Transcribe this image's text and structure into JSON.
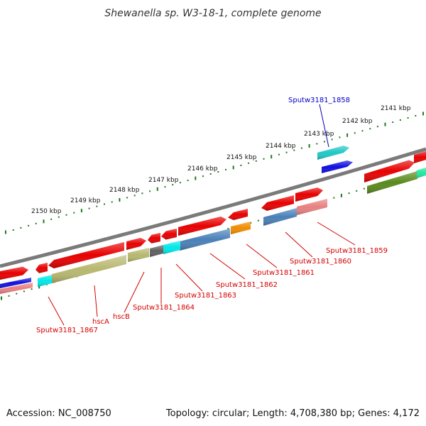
{
  "title": "Shewanella sp. W3-18-1, complete genome",
  "footer": {
    "accession": "Accession: NC_008750",
    "summary": "Topology: circular; Length: 4,708,380 bp; Genes: 4,172"
  },
  "scale": {
    "unit": "kbp",
    "ticks": [
      "2150 kbp",
      "2149 kbp",
      "2148 kbp",
      "2147 kbp",
      "2146 kbp",
      "2145 kbp",
      "2144 kbp",
      "2143 kbp",
      "2142 kbp",
      "2141 kbp"
    ]
  },
  "colors": {
    "backbone": "#7a7a7a",
    "scale_dots": "#1f7a1f",
    "label_red": "#d40000",
    "label_blue": "#0000c8",
    "red": "#e80000",
    "pink": "#e88080",
    "olive": "#b8b870",
    "darkolive": "#5a8a1e",
    "grey": "#606060",
    "cyan": "#00e8e8",
    "steel": "#4a80b8",
    "orange": "#f08c00",
    "blue": "#1010e0",
    "teal": "#20c8c8",
    "mint": "#20e8a0"
  },
  "gene_labels": [
    {
      "text": "Sputw3181_1858",
      "color": "blue"
    },
    {
      "text": "Sputw3181_1859",
      "color": "red"
    },
    {
      "text": "Sputw3181_1860",
      "color": "red"
    },
    {
      "text": "Sputw3181_1861",
      "color": "red"
    },
    {
      "text": "Sputw3181_1862",
      "color": "red"
    },
    {
      "text": "Sputw3181_1863",
      "color": "red"
    },
    {
      "text": "Sputw3181_1864",
      "color": "red"
    },
    {
      "text": "hscB",
      "color": "red"
    },
    {
      "text": "hscA",
      "color": "red"
    },
    {
      "text": "Sputw3181_1867",
      "color": "red"
    }
  ]
}
